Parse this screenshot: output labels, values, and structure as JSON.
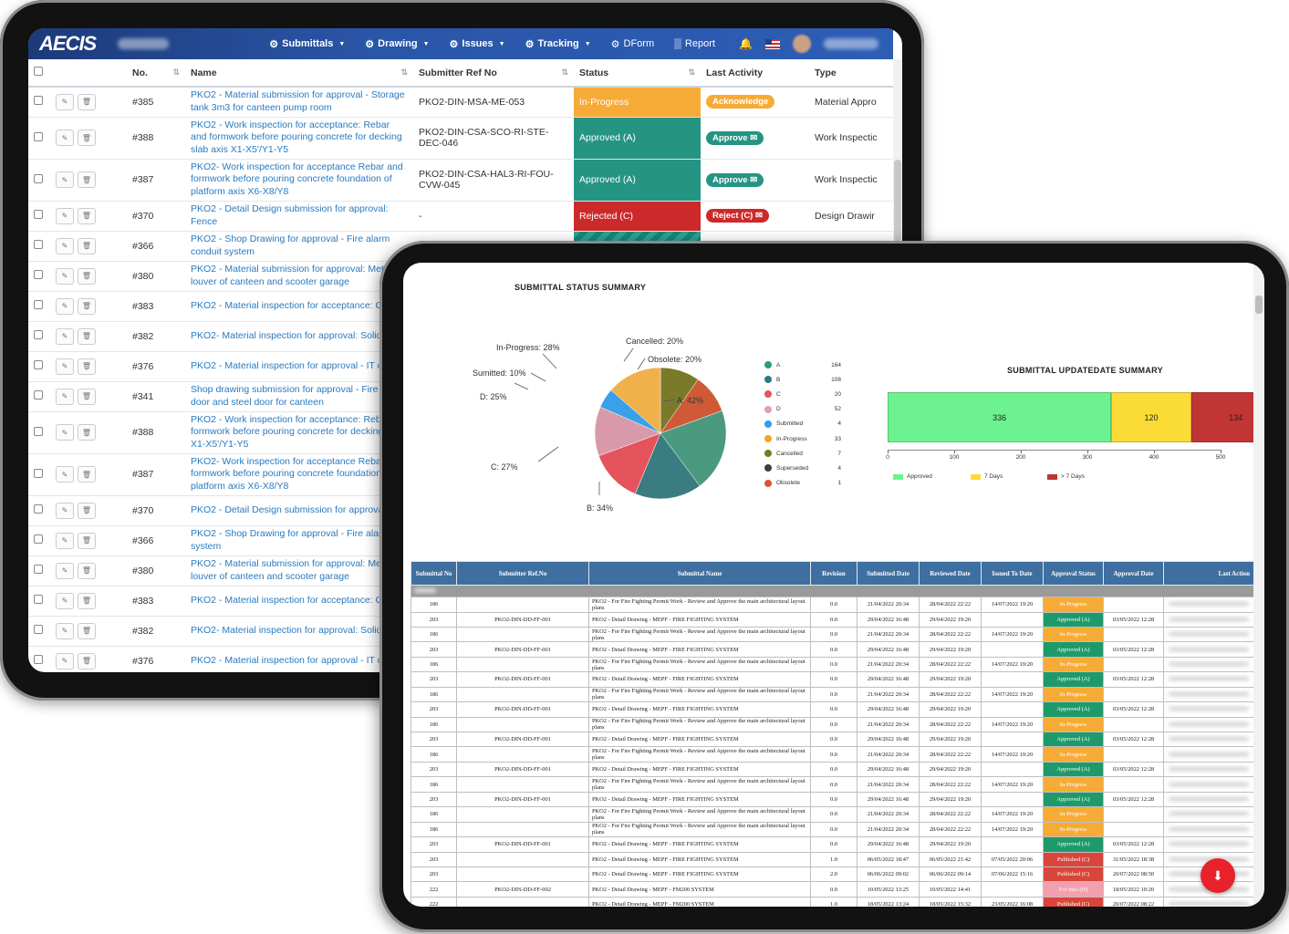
{
  "app": {
    "logo": "AECIS",
    "nav": [
      {
        "label": "Submittals",
        "icon": "submittals-icon"
      },
      {
        "label": "Drawing",
        "icon": "drawing-icon"
      },
      {
        "label": "Issues",
        "icon": "issues-icon"
      },
      {
        "label": "Tracking",
        "icon": "tracking-icon"
      },
      {
        "label": "DForm",
        "icon": "dform-icon"
      },
      {
        "label": "Report",
        "icon": "report-icon"
      }
    ]
  },
  "submittal_table": {
    "headers": {
      "no": "No.",
      "name": "Name",
      "ref": "Submitter Ref No",
      "status": "Status",
      "activity": "Last Activity",
      "type": "Type"
    },
    "rows": [
      {
        "no": "#385",
        "name": "PKO2 - Material submission for approval - Storage tank 3m3 for canteen pump room",
        "ref": "PKO2-DIN-MSA-ME-053",
        "status": "In-Progress",
        "activity": "Acknowledge",
        "type": "Material Appro"
      },
      {
        "no": "#388",
        "name": "PKO2 - Work inspection for acceptance: Rebar and formwork before pouring concrete for decking slab axis X1-X5'/Y1-Y5",
        "ref": "PKO2-DIN-CSA-SCO-RI-STE-DEC-046",
        "status": "Approved (A)",
        "activity": "Approve",
        "type": "Work Inspectic"
      },
      {
        "no": "#387",
        "name": "PKO2- Work inspection for acceptance Rebar and formwork before pouring concrete foundation of platform axis X6-X8/Y8",
        "ref": "PKO2-DIN-CSA-HAL3-RI-FOU-CVW-045",
        "status": "Approved (A)",
        "activity": "Approve",
        "type": "Work Inspectic"
      },
      {
        "no": "#370",
        "name": "PKO2 - Detail Design submission for approval: Fence",
        "ref": "-",
        "status": "Rejected (C)",
        "activity": "Reject (C)",
        "type": "Design Drawir"
      },
      {
        "no": "#366",
        "name": "PKO2 - Shop Drawing for approval - Fire alarm conduit system",
        "ref": "",
        "status": "",
        "activity": "",
        "type": ""
      },
      {
        "no": "#380",
        "name": "PKO2 - Material submission for approval: Metal for louver of canteen and scooter garage",
        "ref": "",
        "status": "",
        "activity": "",
        "type": ""
      },
      {
        "no": "#383",
        "name": "PKO2 - Material inspection for acceptance: Grou",
        "ref": "",
        "status": "",
        "activity": "",
        "type": ""
      },
      {
        "no": "#382",
        "name": "PKO2- Material inspection for approval: Solid br",
        "ref": "",
        "status": "",
        "activity": "",
        "type": ""
      },
      {
        "no": "#376",
        "name": "PKO2 - Material inspection for approval - IT cab",
        "ref": "",
        "status": "",
        "activity": "",
        "type": ""
      },
      {
        "no": "#341",
        "name": "Shop drawing submission for approval - Fire rate door and steel door for canteen",
        "ref": "",
        "status": "",
        "activity": "",
        "type": ""
      },
      {
        "no": "#388",
        "name": "PKO2 - Work inspection for acceptance: Rebar formwork before pouring concrete for decking sl X1-X5'/Y1-Y5",
        "ref": "",
        "status": "",
        "activity": "",
        "type": ""
      },
      {
        "no": "#387",
        "name": "PKO2- Work inspection for acceptance Rebar a formwork before pouring concrete foundation of platform axis X6-X8/Y8",
        "ref": "",
        "status": "",
        "activity": "",
        "type": ""
      },
      {
        "no": "#370",
        "name": "PKO2 - Detail Design submission for approval: F",
        "ref": "",
        "status": "",
        "activity": "",
        "type": ""
      },
      {
        "no": "#366",
        "name": "PKO2 - Shop Drawing for approval - Fire alarm system",
        "ref": "",
        "status": "",
        "activity": "",
        "type": ""
      },
      {
        "no": "#380",
        "name": "PKO2 - Material submission for approval: Metal for louver of canteen and scooter garage",
        "ref": "",
        "status": "",
        "activity": "",
        "type": ""
      },
      {
        "no": "#383",
        "name": "PKO2 - Material inspection for acceptance: Grou",
        "ref": "",
        "status": "",
        "activity": "",
        "type": ""
      },
      {
        "no": "#382",
        "name": "PKO2- Material inspection for approval: Solid br",
        "ref": "",
        "status": "",
        "activity": "",
        "type": ""
      },
      {
        "no": "#376",
        "name": "PKO2 - Material inspection for approval - IT cab",
        "ref": "",
        "status": "",
        "activity": "",
        "type": ""
      }
    ]
  },
  "chart_data": [
    {
      "type": "pie",
      "title": "SUBMITTAL STATUS SUMMARY",
      "slices": [
        {
          "label": "A: 42%",
          "value": 42,
          "color": "#4a9a80"
        },
        {
          "label": "B: 34%",
          "value": 34,
          "color": "#3a7c82"
        },
        {
          "label": "C: 27%",
          "value": 27,
          "color": "#e5535c"
        },
        {
          "label": "D: 25%",
          "value": 25,
          "color": "#d89aaa"
        },
        {
          "label": "Sumitted: 10%",
          "value": 10,
          "color": "#3aa0e8"
        },
        {
          "label": "In-Progress: 28%",
          "value": 28,
          "color": "#f0b04a"
        },
        {
          "label": "Cancelled: 20%",
          "value": 20,
          "color": "#7a7a2a"
        },
        {
          "label": "Obsolete: 20%",
          "value": 20,
          "color": "#d05a36"
        }
      ],
      "legend": [
        {
          "label": "A",
          "value": "164",
          "color": "#2e9a80"
        },
        {
          "label": "B",
          "value": "108",
          "color": "#2a7c80"
        },
        {
          "label": "C",
          "value": "20",
          "color": "#e5535c"
        },
        {
          "label": "D",
          "value": "52",
          "color": "#e0a0b4"
        },
        {
          "label": "Submitted",
          "value": "4",
          "color": "#2f9ef0"
        },
        {
          "label": "In-Progress",
          "value": "33",
          "color": "#f5a623"
        },
        {
          "label": "Cancelled",
          "value": "7",
          "color": "#7a7a1e"
        },
        {
          "label": "Superseded",
          "value": "4",
          "color": "#3a3f46"
        },
        {
          "label": "Obsolete",
          "value": "1",
          "color": "#d8552e"
        }
      ]
    },
    {
      "type": "bar",
      "title": "SUBMITTAL UPDATEDATE SUMMARY",
      "orientation": "horizontal-stacked",
      "series": [
        {
          "name": "Approved",
          "value": 336,
          "color": "#6cf38f"
        },
        {
          "name": "7 Days",
          "value": 120,
          "color": "#fbdc36"
        },
        {
          "name": "> 7 Days",
          "value": 134,
          "color": "#c23535"
        }
      ],
      "xlim": [
        0,
        500
      ],
      "ticks": [
        "0",
        "100",
        "200",
        "300",
        "400",
        "500"
      ]
    }
  ],
  "report": {
    "headers": [
      "Submittal No",
      "Submitter Ref.No",
      "Submittal Name",
      "Revision",
      "Submitted Date",
      "Reviewed Date",
      "Issued To Date",
      "Approval Status",
      "Approval Date",
      "Last Action"
    ],
    "rows": [
      [
        "186",
        "",
        "PKO2 - For Fire Fighting Permit Work - Review and Approve the main architectural layout plans",
        "0.0",
        "21/04/2022 20:34",
        "28/04/2022 22:22",
        "14/07/2022 19:20",
        "In-Progress",
        ""
      ],
      [
        "203",
        "PKO2-DIN-DD-FF-001",
        "PKO2 - Detail Drawing - MEPF - FIRE FIGHTING SYSTEM",
        "0.0",
        "29/04/2022 16:48",
        "29/04/2022 19:20",
        "",
        "Approved (A)",
        "03/05/2022 12:28"
      ],
      [
        "186",
        "",
        "PKO2 - For Fire Fighting Permit Work - Review and Approve the main architectural layout plans",
        "0.0",
        "21/04/2022 20:34",
        "28/04/2022 22:22",
        "14/07/2022 19:20",
        "In-Progress",
        ""
      ],
      [
        "203",
        "PKO2-DIN-DD-FF-001",
        "PKO2 - Detail Drawing - MEPF - FIRE FIGHTING SYSTEM",
        "0.0",
        "29/04/2022 16:48",
        "29/04/2022 19:20",
        "",
        "Approved (A)",
        "03/05/2022 12:28"
      ],
      [
        "186",
        "",
        "PKO2 - For Fire Fighting Permit Work - Review and Approve the main architectural layout plans",
        "0.0",
        "21/04/2022 20:34",
        "28/04/2022 22:22",
        "14/07/2022 19:20",
        "In-Progress",
        ""
      ],
      [
        "203",
        "PKO2-DIN-DD-FF-001",
        "PKO2 - Detail Drawing - MEPF - FIRE FIGHTING SYSTEM",
        "0.0",
        "29/04/2022 16:48",
        "29/04/2022 19:20",
        "",
        "Approved (A)",
        "03/05/2022 12:28"
      ],
      [
        "186",
        "",
        "PKO2 - For Fire Fighting Permit Work - Review and Approve the main architectural layout plans",
        "0.0",
        "21/04/2022 20:34",
        "28/04/2022 22:22",
        "14/07/2022 19:20",
        "In-Progress",
        ""
      ],
      [
        "203",
        "PKO2-DIN-DD-FF-001",
        "PKO2 - Detail Drawing - MEPF - FIRE FIGHTING SYSTEM",
        "0.0",
        "29/04/2022 16:48",
        "29/04/2022 19:20",
        "",
        "Approved (A)",
        "03/05/2022 12:28"
      ],
      [
        "186",
        "",
        "PKO2 - For Fire Fighting Permit Work - Review and Approve the main architectural layout plans",
        "0.0",
        "21/04/2022 20:34",
        "28/04/2022 22:22",
        "14/07/2022 19:20",
        "In-Progress",
        ""
      ],
      [
        "203",
        "PKO2-DIN-DD-FF-001",
        "PKO2 - Detail Drawing - MEPF - FIRE FIGHTING SYSTEM",
        "0.0",
        "29/04/2022 16:48",
        "29/04/2022 19:20",
        "",
        "Approved (A)",
        "03/05/2022 12:28"
      ],
      [
        "186",
        "",
        "PKO2 - For Fire Fighting Permit Work - Review and Approve the main architectural layout plans",
        "0.0",
        "21/04/2022 20:34",
        "28/04/2022 22:22",
        "14/07/2022 19:20",
        "In-Progress",
        ""
      ],
      [
        "203",
        "PKO2-DIN-DD-FF-001",
        "PKO2 - Detail Drawing - MEPF - FIRE FIGHTING SYSTEM",
        "0.0",
        "29/04/2022 16:48",
        "29/04/2022 19:20",
        "",
        "Approved (A)",
        "03/05/2022 12:28"
      ],
      [
        "186",
        "",
        "PKO2 - For Fire Fighting Permit Work - Review and Approve the main architectural layout plans",
        "0.0",
        "21/04/2022 20:34",
        "28/04/2022 22:22",
        "14/07/2022 19:20",
        "In-Progress",
        ""
      ],
      [
        "203",
        "PKO2-DIN-DD-FF-001",
        "PKO2 - Detail Drawing - MEPF - FIRE FIGHTING SYSTEM",
        "0.0",
        "29/04/2022 16:48",
        "29/04/2022 19:20",
        "",
        "Approved (A)",
        "03/05/2022 12:28"
      ],
      [
        "186",
        "",
        "PKO2 - For Fire Fighting Permit Work - Review and Approve the main architectural layout plans",
        "0.0",
        "21/04/2022 20:34",
        "28/04/2022 22:22",
        "14/07/2022 19:20",
        "In-Progress",
        ""
      ],
      [
        "186",
        "",
        "PKO2 - For Fire Fighting Permit Work - Review and Approve the main architectural layout plans",
        "0.0",
        "21/04/2022 20:34",
        "28/04/2022 22:22",
        "14/07/2022 19:20",
        "In-Progress",
        ""
      ],
      [
        "203",
        "PKO2-DIN-DD-FF-001",
        "PKO2 - Detail Drawing - MEPF - FIRE FIGHTING SYSTEM",
        "0.0",
        "29/04/2022 16:48",
        "29/04/2022 19:20",
        "",
        "Approved (A)",
        "03/05/2022 12:28"
      ],
      [
        "203",
        "",
        "PKO2 - Detail Drawing - MEPF - FIRE FIGHTING SYSTEM",
        "1.0",
        "06/05/2022 18:47",
        "06/05/2022 21:42",
        "07/05/2022 20:06",
        "Published (C)",
        "31/05/2022 18:38"
      ],
      [
        "203",
        "",
        "PKO2 - Detail Drawing - MEPF - FIRE FIGHTING SYSTEM",
        "2.0",
        "06/06/2022 09:02",
        "06/06/2022 09:14",
        "07/06/2022 15:16",
        "Published (C)",
        "20/07/2022 08:50"
      ],
      [
        "222",
        "PKO2-DIN-DD-FF-002",
        "PKO2 - Detail Drawing - MEPF - FM200 SYSTEM",
        "0.0",
        "10/05/2022 13:25",
        "10/05/2022 14:41",
        "",
        "For Info (D)",
        "18/05/2022 10:20"
      ],
      [
        "222",
        "",
        "PKO2 - Detail Drawing - MEPF - FM200 SYSTEM",
        "1.0",
        "18/05/2022 13:24",
        "18/05/2022 15:32",
        "23/05/2022 16:08",
        "Published (C)",
        "20/07/2022 08:22"
      ]
    ]
  }
}
